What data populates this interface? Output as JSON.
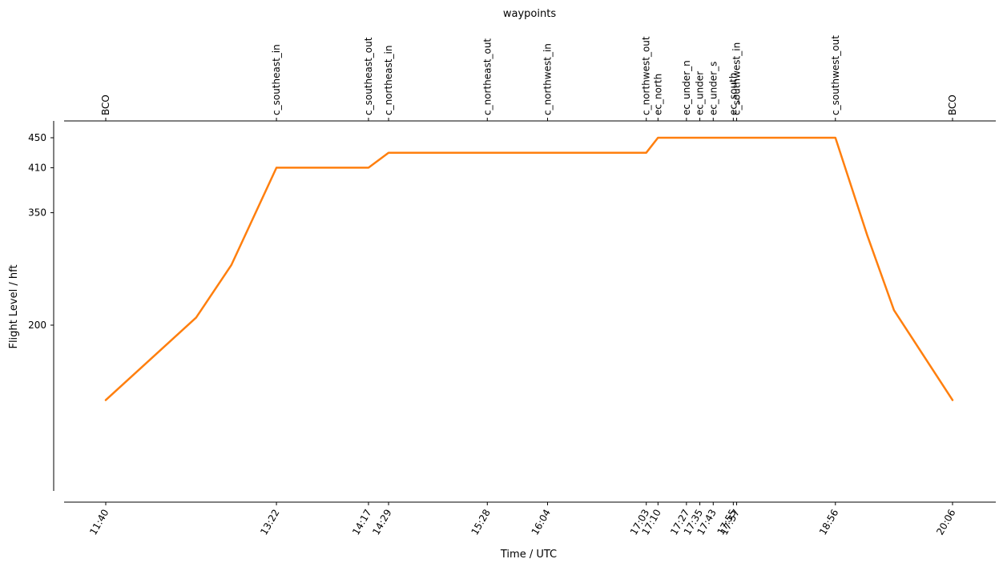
{
  "chart_data": {
    "type": "line",
    "title": "",
    "xlabel": "Time / UTC",
    "ylabel": "Flight Level / hft",
    "top_axis_label": "waypoints",
    "ylim": [
      60,
      465
    ],
    "grid": false,
    "line_color": "#ff7f0e",
    "yticks": [
      200,
      350,
      410,
      450
    ],
    "xticks": [
      {
        "label": "11:40",
        "minutes": 700
      },
      {
        "label": "13:22",
        "minutes": 802
      },
      {
        "label": "14:17",
        "minutes": 857
      },
      {
        "label": "14:29",
        "minutes": 869
      },
      {
        "label": "15:28",
        "minutes": 928
      },
      {
        "label": "16:04",
        "minutes": 964
      },
      {
        "label": "17:03",
        "minutes": 1023
      },
      {
        "label": "17:10",
        "minutes": 1030
      },
      {
        "label": "17:27",
        "minutes": 1047
      },
      {
        "label": "17:35",
        "minutes": 1055
      },
      {
        "label": "17:43",
        "minutes": 1063
      },
      {
        "label": "17:55",
        "minutes": 1075
      },
      {
        "label": "17:57",
        "minutes": 1077
      },
      {
        "label": "18:56",
        "minutes": 1136
      },
      {
        "label": "20:06",
        "minutes": 1206
      }
    ],
    "waypoints": [
      {
        "name": "BCO",
        "minutes": 700
      },
      {
        "name": "c_southeast_in",
        "minutes": 802
      },
      {
        "name": "c_southeast_out",
        "minutes": 857
      },
      {
        "name": "c_northeast_in",
        "minutes": 869
      },
      {
        "name": "c_northeast_out",
        "minutes": 928
      },
      {
        "name": "c_northwest_in",
        "minutes": 964
      },
      {
        "name": "c_northwest_out",
        "minutes": 1023
      },
      {
        "name": "ec_north",
        "minutes": 1030
      },
      {
        "name": "ec_under_n",
        "minutes": 1047
      },
      {
        "name": "ec_under",
        "minutes": 1055
      },
      {
        "name": "ec_under_s",
        "minutes": 1063
      },
      {
        "name": "ec_south",
        "minutes": 1075
      },
      {
        "name": "c_southwest_in",
        "minutes": 1077
      },
      {
        "name": "c_southwest_out",
        "minutes": 1136
      },
      {
        "name": "BCO",
        "minutes": 1206
      }
    ],
    "series": [
      {
        "x": [
          700,
          754,
          775,
          802,
          857,
          869,
          928,
          964,
          1023,
          1030,
          1047,
          1055,
          1063,
          1075,
          1077,
          1136,
          1155,
          1171,
          1206
        ],
        "y": [
          100,
          210,
          280,
          410,
          410,
          430,
          430,
          430,
          430,
          450,
          450,
          450,
          450,
          450,
          450,
          450,
          320,
          220,
          100
        ]
      }
    ]
  }
}
